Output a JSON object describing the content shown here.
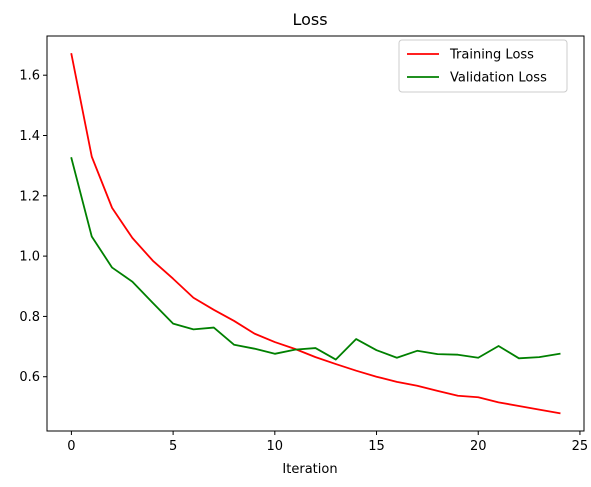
{
  "chart_data": {
    "type": "line",
    "title": "Loss",
    "xlabel": "Iteration",
    "ylabel": "",
    "xlim": [
      -1.2,
      25.2
    ],
    "ylim": [
      0.42,
      1.73
    ],
    "xticks": [
      0,
      5,
      10,
      15,
      20,
      25
    ],
    "yticks": [
      0.6,
      0.8,
      1.0,
      1.2,
      1.4,
      1.6
    ],
    "xtick_labels": [
      "0",
      "5",
      "10",
      "15",
      "20",
      "25"
    ],
    "ytick_labels": [
      "0.6",
      "0.8",
      "1.0",
      "1.2",
      "1.4",
      "1.6"
    ],
    "grid": false,
    "legend_position": "top-right",
    "x": [
      0,
      1,
      2,
      3,
      4,
      5,
      6,
      7,
      8,
      9,
      10,
      11,
      12,
      13,
      14,
      15,
      16,
      17,
      18,
      19,
      20,
      21,
      22,
      23,
      24
    ],
    "series": [
      {
        "name": "Training Loss",
        "color": "#ff0000",
        "values": [
          1.67,
          1.33,
          1.16,
          1.06,
          0.985,
          0.925,
          0.862,
          0.822,
          0.785,
          0.743,
          0.715,
          0.692,
          0.665,
          0.642,
          0.62,
          0.6,
          0.583,
          0.57,
          0.553,
          0.537,
          0.532,
          0.515,
          0.503,
          0.491,
          0.479
        ]
      },
      {
        "name": "Validation Loss",
        "color": "#008000",
        "values": [
          1.325,
          1.065,
          0.962,
          0.915,
          0.845,
          0.776,
          0.757,
          0.763,
          0.706,
          0.693,
          0.676,
          0.69,
          0.695,
          0.657,
          0.725,
          0.688,
          0.663,
          0.686,
          0.675,
          0.673,
          0.663,
          0.702,
          0.661,
          0.665,
          0.676
        ]
      }
    ]
  }
}
